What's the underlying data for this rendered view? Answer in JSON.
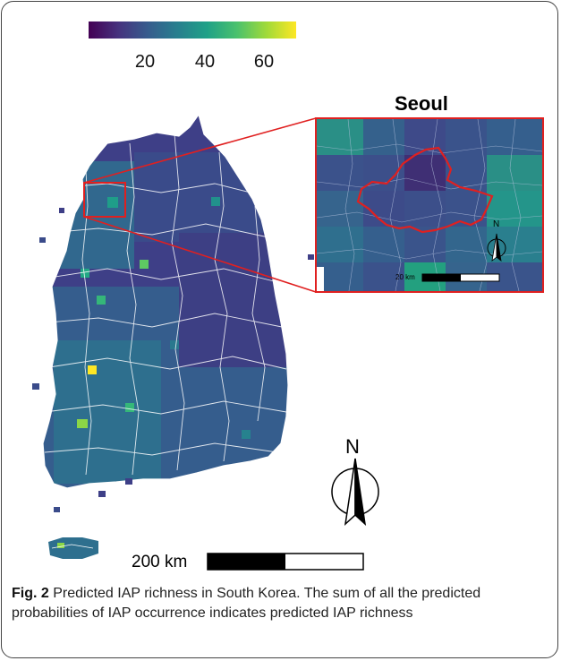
{
  "legend": {
    "ticks": [
      "20",
      "40",
      "60"
    ],
    "gradient": [
      "#440154",
      "#46327e",
      "#365c8d",
      "#277f8e",
      "#1fa187",
      "#4ac16d",
      "#a0da39",
      "#fde725"
    ]
  },
  "inset": {
    "title": "Seoul",
    "north_label": "N",
    "scale_label": "20 km",
    "outline_color": "#e02020"
  },
  "main_map": {
    "north_label": "N",
    "scale_label": "200 km"
  },
  "caption": {
    "label": "Fig. 2",
    "text": " Predicted IAP richness in South Korea. The sum of all the predicted probabilities of IAP occurrence indicates predicted IAP richness"
  }
}
